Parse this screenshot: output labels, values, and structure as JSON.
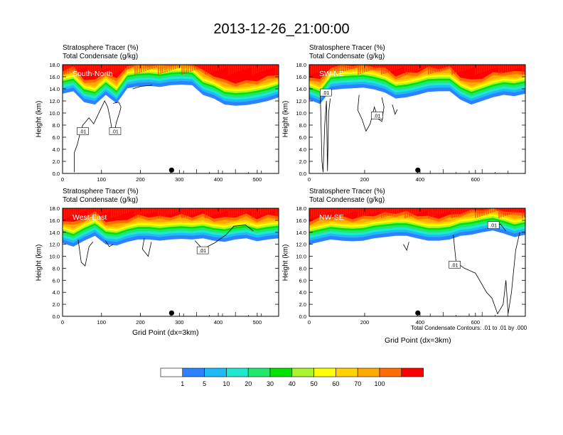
{
  "title": "2013-12-26_21:00:00",
  "field_labels": [
    "Stratosphere Tracer   (%)",
    "Total Condensate   (g/kg)"
  ],
  "y_axis_label": "Height (km)",
  "x_axis_label": "Grid Point (dx=3km)",
  "contour_note": "Total Condensate Contours: .01 to .01 by .000",
  "colorbar": {
    "colors": [
      "#ffffff",
      "#2f82ff",
      "#1fbbf7",
      "#1fe8ce",
      "#1fe86f",
      "#01e301",
      "#a9f42c",
      "#ffff00",
      "#ffd200",
      "#ffaa00",
      "#ff6d00",
      "#ff0000"
    ],
    "labels": [
      "1",
      "5",
      "10",
      "20",
      "30",
      "40",
      "50",
      "60",
      "70",
      "100"
    ]
  },
  "chart_data": [
    {
      "type": "heatmap",
      "panel": "top-left",
      "label": "South-North",
      "xlim": [
        0,
        555
      ],
      "ylim": [
        0,
        18
      ],
      "xticks": [
        0,
        100,
        200,
        300,
        400,
        500
      ],
      "yticks": [
        "0.0",
        "2.0",
        "4.0",
        "6.0",
        "8.0",
        "10.0",
        "12.0",
        "14.0",
        "16.0",
        "18.0"
      ],
      "marker_x": 280,
      "contour_labels": [
        {
          "text": ".01",
          "x": 52,
          "y": 7.0
        },
        {
          "text": ".01",
          "x": 135,
          "y": 7.0
        }
      ]
    },
    {
      "type": "heatmap",
      "panel": "top-right",
      "label": "SW-NE",
      "xlim": [
        0,
        780
      ],
      "ylim": [
        0,
        18
      ],
      "xticks": [
        0,
        200,
        400,
        600
      ],
      "yticks": [
        "0.0",
        "2.0",
        "4.0",
        "6.0",
        "8.0",
        "10.0",
        "12.0",
        "14.0",
        "16.0",
        "18.0"
      ],
      "marker_x": 392,
      "contour_labels": [
        {
          "text": ".01",
          "x": 60,
          "y": 13.4
        },
        {
          "text": ".01",
          "x": 245,
          "y": 9.6
        }
      ]
    },
    {
      "type": "heatmap",
      "panel": "bottom-left",
      "label": "West-East",
      "xlim": [
        0,
        555
      ],
      "ylim": [
        0,
        18
      ],
      "xticks": [
        0,
        100,
        200,
        300,
        400,
        500
      ],
      "yticks": [
        "0.0",
        "2.0",
        "4.0",
        "6.0",
        "8.0",
        "10.0",
        "12.0",
        "14.0",
        "16.0",
        "18.0"
      ],
      "marker_x": 280,
      "contour_labels": [
        {
          "text": ".01",
          "x": 360,
          "y": 11.0
        }
      ]
    },
    {
      "type": "heatmap",
      "panel": "bottom-right",
      "label": "NW-SE",
      "xlim": [
        0,
        780
      ],
      "ylim": [
        0,
        18
      ],
      "xticks": [
        0,
        200,
        400,
        600
      ],
      "yticks": [
        "0.0",
        "2.0",
        "4.0",
        "6.0",
        "8.0",
        "10.0",
        "12.0",
        "14.0",
        "16.0",
        "18.0"
      ],
      "marker_x": 392,
      "contour_labels": [
        {
          "text": ".01",
          "x": 525,
          "y": 8.6
        },
        {
          "text": ".01",
          "x": 665,
          "y": 15.2
        }
      ]
    }
  ]
}
